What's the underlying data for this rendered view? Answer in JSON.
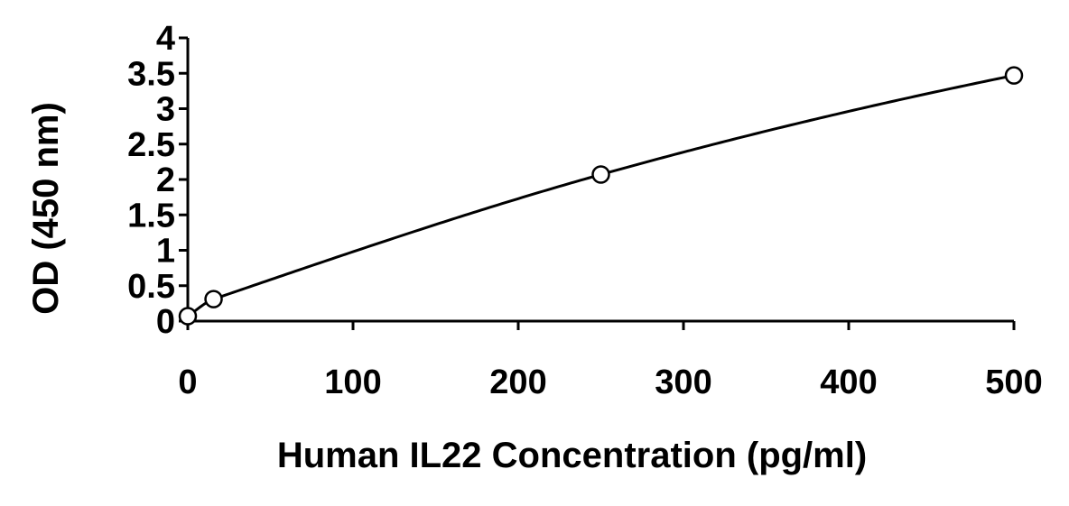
{
  "chart_data": {
    "type": "scatter",
    "title": "",
    "xlabel": "Human IL22 Concentration (pg/ml)",
    "ylabel": "OD (450 nm)",
    "xlim": [
      0,
      500
    ],
    "ylim": [
      0,
      4
    ],
    "x_ticks": [
      "0",
      "100",
      "200",
      "300",
      "400",
      "500"
    ],
    "y_ticks": [
      "0",
      "0.5",
      "1",
      "1.5",
      "2",
      "2.5",
      "3",
      "3.5",
      "4"
    ],
    "grid": false,
    "legend": "none",
    "series": [
      {
        "marker": "open-circle",
        "trendline": "smooth fitted curve",
        "x": [
          0,
          15.6,
          250,
          500
        ],
        "y": [
          0.07,
          0.31,
          2.07,
          3.47
        ]
      }
    ],
    "colors": {
      "line": "#000000",
      "marker_fill": "#ffffff",
      "background": "#ffffff"
    }
  }
}
